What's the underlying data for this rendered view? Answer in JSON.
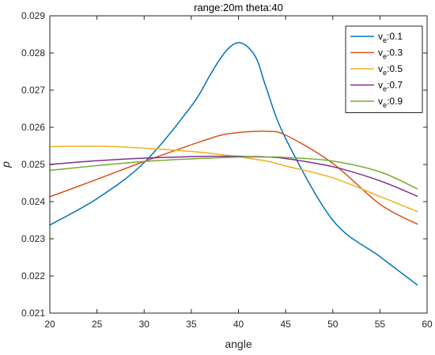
{
  "chart_data": {
    "type": "line",
    "title": "range:20m theta:40",
    "xlabel": "angle",
    "ylabel": "p",
    "xlim": [
      20,
      60
    ],
    "ylim": [
      0.021,
      0.029
    ],
    "xticks": [
      20,
      25,
      30,
      35,
      40,
      45,
      50,
      55,
      60
    ],
    "yticks": [
      0.021,
      0.022,
      0.023,
      0.024,
      0.025,
      0.026,
      0.027,
      0.028,
      0.029
    ],
    "xtick_labels": [
      "20",
      "25",
      "30",
      "35",
      "40",
      "45",
      "50",
      "55",
      "60"
    ],
    "ytick_labels": [
      "0.021",
      "0.022",
      "0.023",
      "0.024",
      "0.025",
      "0.026",
      "0.027",
      "0.028",
      "0.029"
    ],
    "legend_position": "top-right",
    "grid": false,
    "x": [
      20,
      25,
      30,
      35,
      37,
      38,
      39,
      40,
      41,
      42,
      43,
      45,
      50,
      55,
      59
    ],
    "series": [
      {
        "label_main": "v",
        "label_sub": "e",
        "label_value": ":0.1",
        "color": "#0072BD",
        "values": [
          0.02337,
          0.02408,
          0.02505,
          0.02657,
          0.02741,
          0.02782,
          0.02814,
          0.02828,
          0.02816,
          0.0278,
          0.02702,
          0.0257,
          0.0235,
          0.02252,
          0.02175
        ]
      },
      {
        "label_main": "v",
        "label_sub": "e",
        "label_value": ":0.3",
        "color": "#D95319",
        "values": [
          0.02413,
          0.0246,
          0.02508,
          0.02553,
          0.0257,
          0.02578,
          0.02583,
          0.02586,
          0.02588,
          0.02589,
          0.02589,
          0.02579,
          0.02503,
          0.02393,
          0.02339
        ]
      },
      {
        "label_main": "v",
        "label_sub": "e",
        "label_value": ":0.5",
        "color": "#EDB120",
        "values": [
          0.02548,
          0.02549,
          0.02544,
          0.02535,
          0.0253,
          0.02527,
          0.02524,
          0.02521,
          0.02517,
          0.02513,
          0.02509,
          0.02496,
          0.02464,
          0.02414,
          0.02373
        ]
      },
      {
        "label_main": "v",
        "label_sub": "e",
        "label_value": ":0.7",
        "color": "#7E2F8E",
        "values": [
          0.025,
          0.0251,
          0.02517,
          0.02521,
          0.02522,
          0.02522,
          0.02522,
          0.02522,
          0.02521,
          0.02521,
          0.0252,
          0.02516,
          0.02494,
          0.02456,
          0.02414
        ]
      },
      {
        "label_main": "v",
        "label_sub": "e",
        "label_value": ":0.9",
        "color": "#77AC30",
        "values": [
          0.02484,
          0.02497,
          0.02508,
          0.02515,
          0.02517,
          0.02518,
          0.02519,
          0.0252,
          0.0252,
          0.0252,
          0.0252,
          0.02519,
          0.02509,
          0.0248,
          0.02434
        ]
      }
    ]
  }
}
